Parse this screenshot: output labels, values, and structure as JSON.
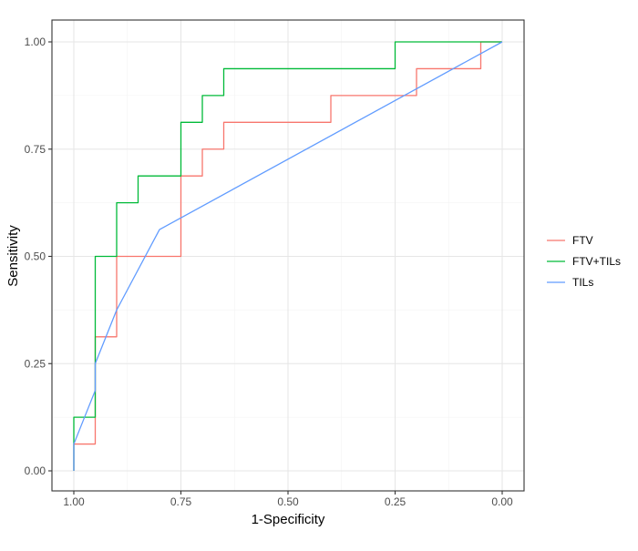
{
  "chart_data": {
    "type": "line",
    "title": "",
    "xlabel": "1-Specificity",
    "ylabel": "Sensitivity",
    "xlim": [
      1.0,
      0.0
    ],
    "ylim": [
      0.0,
      1.0
    ],
    "x_reversed": true,
    "grid": true,
    "legend_position": "right",
    "x_ticks": [
      "1.00",
      "0.75",
      "0.50",
      "0.25",
      "0.00"
    ],
    "x_tick_values": [
      1.0,
      0.75,
      0.5,
      0.25,
      0.0
    ],
    "y_ticks": [
      "0.00",
      "0.25",
      "0.50",
      "0.75",
      "1.00"
    ],
    "y_tick_values": [
      0.0,
      0.25,
      0.5,
      0.75,
      1.0
    ],
    "series": [
      {
        "name": "FTV",
        "color": "#F8766D",
        "x": [
          1.0,
          1.0,
          0.95,
          0.95,
          0.9,
          0.9,
          0.75,
          0.75,
          0.7,
          0.7,
          0.65,
          0.65,
          0.4,
          0.4,
          0.2,
          0.2,
          0.05,
          0.05,
          0.0
        ],
        "y": [
          0.0,
          0.0625,
          0.0625,
          0.3125,
          0.3125,
          0.5,
          0.5,
          0.6875,
          0.6875,
          0.75,
          0.75,
          0.8125,
          0.8125,
          0.875,
          0.875,
          0.9375,
          0.9375,
          1.0,
          1.0
        ]
      },
      {
        "name": "FTV+TILs",
        "color": "#00BA38",
        "x": [
          1.0,
          1.0,
          0.95,
          0.95,
          0.9,
          0.9,
          0.85,
          0.85,
          0.75,
          0.75,
          0.7,
          0.7,
          0.65,
          0.65,
          0.25,
          0.25,
          0.0
        ],
        "y": [
          0.0,
          0.125,
          0.125,
          0.5,
          0.5,
          0.625,
          0.625,
          0.6875,
          0.6875,
          0.8125,
          0.8125,
          0.875,
          0.875,
          0.9375,
          0.9375,
          1.0,
          1.0
        ]
      },
      {
        "name": "TILs",
        "color": "#619CFF",
        "x": [
          1.0,
          1.0,
          0.95,
          0.95,
          0.9,
          0.8,
          0.0
        ],
        "y": [
          0.0,
          0.0625,
          0.1875,
          0.25,
          0.375,
          0.5625,
          1.0
        ]
      }
    ]
  }
}
